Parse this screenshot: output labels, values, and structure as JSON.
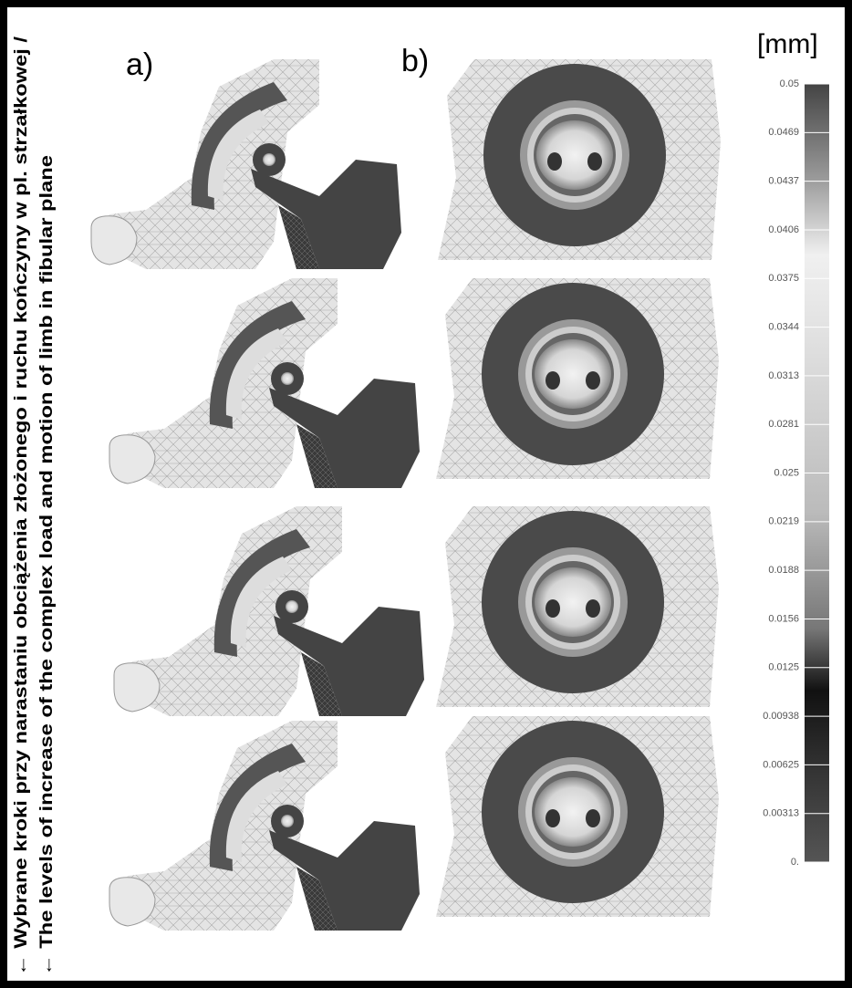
{
  "figure": {
    "panel_labels": [
      "a)",
      "b)"
    ],
    "unit": "[mm]",
    "colorbar_ticks": [
      "0.05",
      "0.0469",
      "0.0437",
      "0.0406",
      "0.0375",
      "0.0344",
      "0.0313",
      "0.0281",
      "0.025",
      "0.0219",
      "0.0188",
      "0.0156",
      "0.0125",
      "0.00938",
      "0.00625",
      "0.00313",
      "0."
    ],
    "caption_pl": "← Wybrane kroki przy narastaniu obciążenia złożonego i ruchu kończyny w pl. strzałkowej /",
    "caption_en": "← The levels of increase of the complex load and motion of limb in fibular plane"
  }
}
